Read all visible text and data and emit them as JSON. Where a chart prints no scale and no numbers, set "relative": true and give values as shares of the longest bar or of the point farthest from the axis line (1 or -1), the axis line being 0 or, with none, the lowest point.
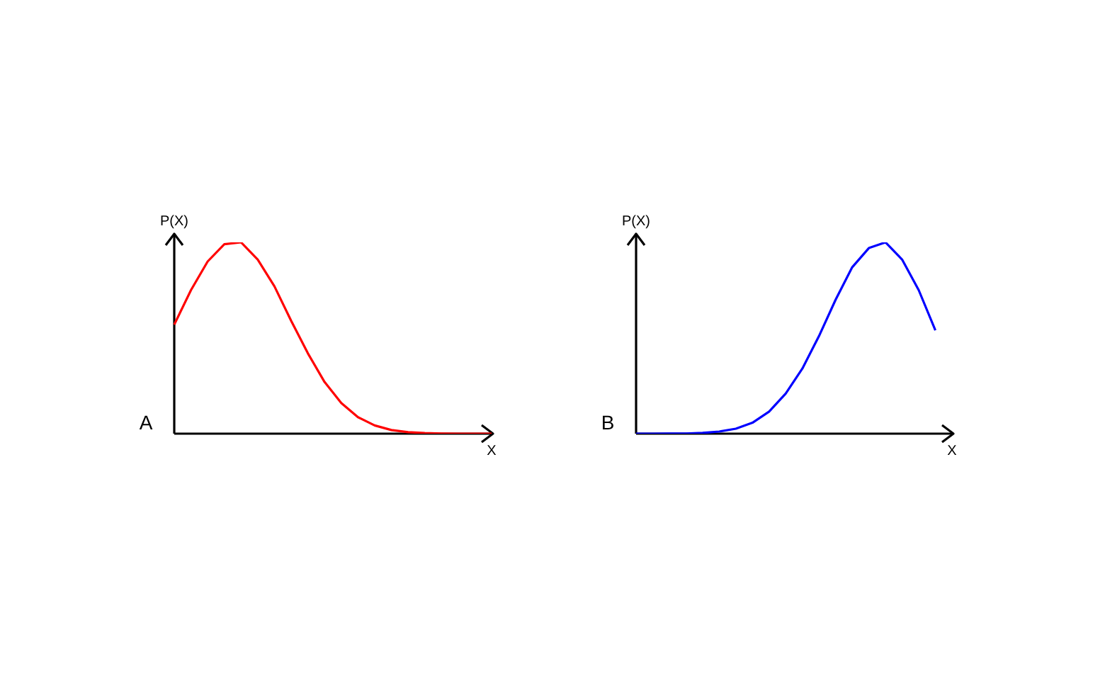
{
  "chart_data": [
    {
      "type": "line",
      "title": "A",
      "xlabel": "X",
      "ylabel": "P(X)",
      "relative": true,
      "categories": [
        null,
        null,
        null,
        null,
        null,
        null,
        null,
        null,
        null,
        null,
        null,
        null,
        null,
        null,
        null,
        null,
        null,
        null,
        null,
        null
      ],
      "series": [
        {
          "color": "#ff0000",
          "values": [
            0.57,
            0.75,
            0.9,
            0.99,
            1,
            0.91,
            0.77,
            0.59,
            0.42,
            0.27,
            0.16,
            0.086,
            0.043,
            0.019,
            0.008,
            0.003,
            0.001,
            0,
            0,
            0
          ]
        }
      ]
    },
    {
      "type": "line",
      "title": "B",
      "xlabel": "X",
      "ylabel": "P(X)",
      "relative": true,
      "categories": [
        null,
        null,
        null,
        null,
        null,
        null,
        null,
        null,
        null,
        null,
        null,
        null,
        null,
        null,
        null,
        null,
        null,
        null,
        null,
        null
      ],
      "series": [
        {
          "color": "#0000ff",
          "values": [
            0,
            0,
            0.0004,
            0.001,
            0.004,
            0.011,
            0.026,
            0.057,
            0.115,
            0.21,
            0.34,
            0.51,
            0.7,
            0.87,
            0.97,
            1,
            0.91,
            0.75,
            0.54,
            null
          ]
        }
      ]
    }
  ]
}
